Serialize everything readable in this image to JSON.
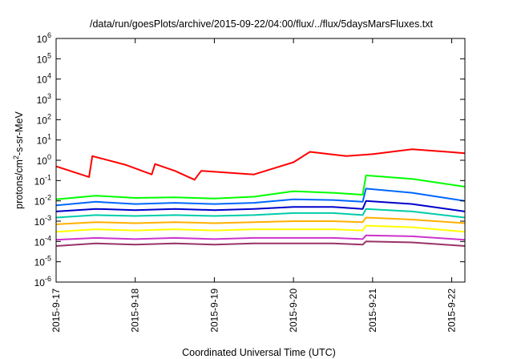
{
  "chart_data": {
    "type": "line",
    "title": "/data/run/goesPlots/archive/2015-09-22/04:00/flux/../flux/5daysMarsFluxes.txt",
    "xlabel": "Coordinated Universal Time (UTC)",
    "ylabel_main": "protons/cm",
    "ylabel_sup": "2",
    "ylabel_tail": "-s-sr-MeV",
    "x_scale": "time",
    "y_scale": "log",
    "xlim": [
      "2015-09-17T00:00",
      "2015-09-22T04:00"
    ],
    "ylim": [
      1e-06,
      1000000.0
    ],
    "x_ticks": [
      {
        "t": "2015-09-17T00:00",
        "label": "2015-9-17"
      },
      {
        "t": "2015-09-18T00:00",
        "label": "2015-9-18"
      },
      {
        "t": "2015-09-19T00:00",
        "label": "2015-9-19"
      },
      {
        "t": "2015-09-20T00:00",
        "label": "2015-9-20"
      },
      {
        "t": "2015-09-21T00:00",
        "label": "2015-9-21"
      },
      {
        "t": "2015-09-22T00:00",
        "label": "2015-9-22"
      }
    ],
    "y_ticks": [
      {
        "exp": -6,
        "base": "10",
        "sup": "-6"
      },
      {
        "exp": -5,
        "base": "10",
        "sup": "-5"
      },
      {
        "exp": -4,
        "base": "10",
        "sup": "-4"
      },
      {
        "exp": -3,
        "base": "10",
        "sup": "-3"
      },
      {
        "exp": -2,
        "base": "10",
        "sup": "-2"
      },
      {
        "exp": -1,
        "base": "10",
        "sup": "-1"
      },
      {
        "exp": 0,
        "base": "10",
        "sup": "0"
      },
      {
        "exp": 1,
        "base": "10",
        "sup": "1"
      },
      {
        "exp": 2,
        "base": "10",
        "sup": "2"
      },
      {
        "exp": 3,
        "base": "10",
        "sup": "3"
      },
      {
        "exp": 4,
        "base": "10",
        "sup": "4"
      },
      {
        "exp": 5,
        "base": "10",
        "sup": "5"
      },
      {
        "exp": 6,
        "base": "10",
        "sup": "6"
      }
    ],
    "grid": false,
    "legend": "none",
    "series": [
      {
        "color": "#ff0000",
        "points": [
          [
            "2015-09-17T00:00",
            0.5
          ],
          [
            "2015-09-17T10:00",
            0.15
          ],
          [
            "2015-09-17T11:00",
            1.6
          ],
          [
            "2015-09-17T21:00",
            0.6
          ],
          [
            "2015-09-18T05:00",
            0.2
          ],
          [
            "2015-09-18T06:00",
            0.65
          ],
          [
            "2015-09-18T12:00",
            0.3
          ],
          [
            "2015-09-18T18:00",
            0.11
          ],
          [
            "2015-09-18T20:00",
            0.3
          ],
          [
            "2015-09-19T12:00",
            0.2
          ],
          [
            "2015-09-19T18:00",
            0.4
          ],
          [
            "2015-09-20T00:00",
            0.8
          ],
          [
            "2015-09-20T05:00",
            2.6
          ],
          [
            "2015-09-20T16:00",
            1.6
          ],
          [
            "2015-09-21T00:00",
            2.0
          ],
          [
            "2015-09-21T12:00",
            3.5
          ],
          [
            "2015-09-22T00:00",
            2.5
          ],
          [
            "2015-09-22T04:00",
            2.2
          ]
        ]
      },
      {
        "color": "#00ff00",
        "points": [
          [
            "2015-09-17T00:00",
            0.012
          ],
          [
            "2015-09-17T12:00",
            0.018
          ],
          [
            "2015-09-18T00:00",
            0.014
          ],
          [
            "2015-09-18T12:00",
            0.015
          ],
          [
            "2015-09-19T00:00",
            0.013
          ],
          [
            "2015-09-19T12:00",
            0.016
          ],
          [
            "2015-09-20T00:00",
            0.03
          ],
          [
            "2015-09-20T12:00",
            0.025
          ],
          [
            "2015-09-20T21:00",
            0.02
          ],
          [
            "2015-09-20T22:00",
            0.18
          ],
          [
            "2015-09-21T12:00",
            0.12
          ],
          [
            "2015-09-22T04:00",
            0.05
          ]
        ]
      },
      {
        "color": "#0066ff",
        "points": [
          [
            "2015-09-17T00:00",
            0.006
          ],
          [
            "2015-09-17T12:00",
            0.009
          ],
          [
            "2015-09-18T00:00",
            0.007
          ],
          [
            "2015-09-18T12:00",
            0.008
          ],
          [
            "2015-09-19T00:00",
            0.007
          ],
          [
            "2015-09-19T12:00",
            0.008
          ],
          [
            "2015-09-20T00:00",
            0.012
          ],
          [
            "2015-09-20T12:00",
            0.011
          ],
          [
            "2015-09-20T21:00",
            0.009
          ],
          [
            "2015-09-20T22:00",
            0.04
          ],
          [
            "2015-09-21T12:00",
            0.025
          ],
          [
            "2015-09-22T04:00",
            0.01
          ]
        ]
      },
      {
        "color": "#0000cc",
        "points": [
          [
            "2015-09-17T00:00",
            0.003
          ],
          [
            "2015-09-17T12:00",
            0.004
          ],
          [
            "2015-09-18T00:00",
            0.0035
          ],
          [
            "2015-09-18T12:00",
            0.004
          ],
          [
            "2015-09-19T00:00",
            0.0035
          ],
          [
            "2015-09-19T12:00",
            0.004
          ],
          [
            "2015-09-20T00:00",
            0.005
          ],
          [
            "2015-09-20T12:00",
            0.005
          ],
          [
            "2015-09-20T21:00",
            0.004
          ],
          [
            "2015-09-20T22:00",
            0.01
          ],
          [
            "2015-09-21T12:00",
            0.007
          ],
          [
            "2015-09-22T04:00",
            0.003
          ]
        ]
      },
      {
        "color": "#00ccaa",
        "points": [
          [
            "2015-09-17T00:00",
            0.0015
          ],
          [
            "2015-09-17T12:00",
            0.002
          ],
          [
            "2015-09-18T00:00",
            0.0018
          ],
          [
            "2015-09-18T12:00",
            0.002
          ],
          [
            "2015-09-19T00:00",
            0.0018
          ],
          [
            "2015-09-19T12:00",
            0.002
          ],
          [
            "2015-09-20T00:00",
            0.0025
          ],
          [
            "2015-09-20T12:00",
            0.0025
          ],
          [
            "2015-09-20T21:00",
            0.002
          ],
          [
            "2015-09-20T22:00",
            0.004
          ],
          [
            "2015-09-21T12:00",
            0.003
          ],
          [
            "2015-09-22T04:00",
            0.0015
          ]
        ]
      },
      {
        "color": "#ffb000",
        "points": [
          [
            "2015-09-17T00:00",
            0.0007
          ],
          [
            "2015-09-17T12:00",
            0.0009
          ],
          [
            "2015-09-18T00:00",
            0.0008
          ],
          [
            "2015-09-18T12:00",
            0.0009
          ],
          [
            "2015-09-19T00:00",
            0.0008
          ],
          [
            "2015-09-19T12:00",
            0.0009
          ],
          [
            "2015-09-20T00:00",
            0.001
          ],
          [
            "2015-09-20T12:00",
            0.001
          ],
          [
            "2015-09-20T21:00",
            0.0009
          ],
          [
            "2015-09-20T22:00",
            0.0015
          ],
          [
            "2015-09-21T12:00",
            0.0012
          ],
          [
            "2015-09-22T04:00",
            0.0008
          ]
        ]
      },
      {
        "color": "#ffff00",
        "points": [
          [
            "2015-09-17T00:00",
            0.0003
          ],
          [
            "2015-09-17T12:00",
            0.0004
          ],
          [
            "2015-09-18T00:00",
            0.00035
          ],
          [
            "2015-09-18T12:00",
            0.0004
          ],
          [
            "2015-09-19T00:00",
            0.00035
          ],
          [
            "2015-09-19T12:00",
            0.0004
          ],
          [
            "2015-09-20T00:00",
            0.0004
          ],
          [
            "2015-09-20T12:00",
            0.0004
          ],
          [
            "2015-09-20T21:00",
            0.00035
          ],
          [
            "2015-09-20T22:00",
            0.0006
          ],
          [
            "2015-09-21T12:00",
            0.0005
          ],
          [
            "2015-09-22T04:00",
            0.0003
          ]
        ]
      },
      {
        "color": "#cc33cc",
        "points": [
          [
            "2015-09-17T00:00",
            0.00012
          ],
          [
            "2015-09-17T12:00",
            0.00015
          ],
          [
            "2015-09-18T00:00",
            0.00013
          ],
          [
            "2015-09-18T12:00",
            0.00015
          ],
          [
            "2015-09-19T00:00",
            0.00013
          ],
          [
            "2015-09-19T12:00",
            0.00015
          ],
          [
            "2015-09-20T00:00",
            0.00015
          ],
          [
            "2015-09-20T12:00",
            0.00015
          ],
          [
            "2015-09-20T21:00",
            0.00013
          ],
          [
            "2015-09-20T22:00",
            0.0002
          ],
          [
            "2015-09-21T12:00",
            0.00018
          ],
          [
            "2015-09-22T04:00",
            0.00012
          ]
        ]
      },
      {
        "color": "#993366",
        "points": [
          [
            "2015-09-17T00:00",
            6e-05
          ],
          [
            "2015-09-17T12:00",
            8e-05
          ],
          [
            "2015-09-18T00:00",
            7e-05
          ],
          [
            "2015-09-18T12:00",
            8e-05
          ],
          [
            "2015-09-19T00:00",
            7e-05
          ],
          [
            "2015-09-19T12:00",
            8e-05
          ],
          [
            "2015-09-20T00:00",
            8e-05
          ],
          [
            "2015-09-20T12:00",
            8e-05
          ],
          [
            "2015-09-20T21:00",
            7e-05
          ],
          [
            "2015-09-20T22:00",
            0.0001
          ],
          [
            "2015-09-21T12:00",
            9e-05
          ],
          [
            "2015-09-22T04:00",
            6e-05
          ]
        ]
      }
    ]
  }
}
